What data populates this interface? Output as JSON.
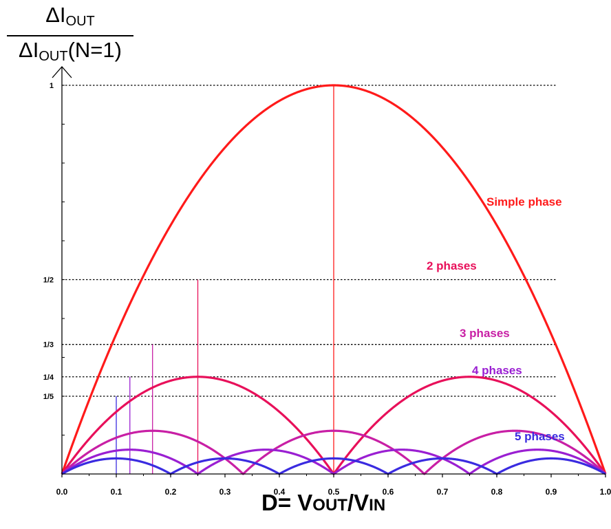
{
  "chart_data": {
    "type": "line",
    "ylabel": {
      "num_main": "ΔI",
      "num_sub": "OUT",
      "den_main": "ΔI",
      "den_sub": "OUT",
      "den_tail": "(N=1)"
    },
    "xlabel": {
      "prefix": "D= V",
      "sub1": "OUT",
      "mid": "/V",
      "sub2": "IN"
    },
    "xlim": [
      0,
      1
    ],
    "ylim": [
      0,
      1
    ],
    "x_ticks": [
      "0.0",
      "0.1",
      "0.2",
      "0.3",
      "0.4",
      "0.5",
      "0.6",
      "0.7",
      "0.8",
      "0.9",
      "1.0"
    ],
    "y_ticks": [
      {
        "label": "1",
        "value": 1
      },
      {
        "label": "1/2",
        "value": 0.5
      },
      {
        "label": "1/3",
        "value": 0.3333
      },
      {
        "label": "1/4",
        "value": 0.25
      },
      {
        "label": "1/5",
        "value": 0.2
      }
    ],
    "grid": "dotted horizontal reference lines at 1, 1/2, 1/3, 1/4, 1/5",
    "series": [
      {
        "name": "Simple phase",
        "phases": 1,
        "color": "#ff1a1a",
        "peak_x": [
          0.5
        ],
        "peak_y": 1
      },
      {
        "name": "2 phases",
        "phases": 2,
        "color": "#e8105a",
        "peak_x": [
          0.25,
          0.75
        ],
        "peak_y": 0.5
      },
      {
        "name": "3 phases",
        "phases": 3,
        "color": "#c81fa5",
        "peak_x": [
          0.1667,
          0.5,
          0.8333
        ],
        "peak_y": 0.3333
      },
      {
        "name": "4 phases",
        "phases": 4,
        "color": "#9a1fd2",
        "peak_x": [
          0.125,
          0.375,
          0.625,
          0.875
        ],
        "peak_y": 0.25
      },
      {
        "name": "5 phases",
        "phases": 5,
        "color": "#3a2be0",
        "peak_x": [
          0.1,
          0.3,
          0.5,
          0.7,
          0.9
        ],
        "peak_y": 0.2
      }
    ]
  }
}
